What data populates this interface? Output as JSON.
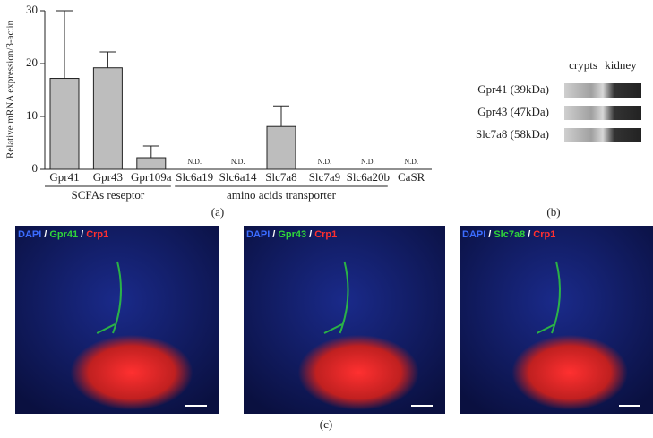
{
  "chart_data": {
    "type": "bar",
    "ylabel": "Relative mRNA expression/β-actin",
    "categories": [
      "Gpr41",
      "Gpr43",
      "Gpr109a",
      "Slc6a19",
      "Slc6a14",
      "Slc7a8",
      "Slc7a9",
      "Slc6a20b",
      "CaSR"
    ],
    "values": [
      17.2,
      19.2,
      2.2,
      null,
      null,
      8.1,
      null,
      null,
      null
    ],
    "value_labels": [
      null,
      null,
      null,
      "N.D.",
      "N.D.",
      null,
      "N.D.",
      "N.D.",
      "N.D."
    ],
    "errors": [
      12.8,
      3.0,
      2.2,
      null,
      null,
      3.9,
      null,
      null,
      null
    ],
    "color": "#bdbdbd",
    "ylim": [
      0,
      30
    ],
    "yticks": [
      0,
      10,
      20,
      30
    ],
    "groups": [
      {
        "label": "SCFAs reseptor",
        "count": 3
      },
      {
        "label": "amino acids transporter",
        "count": 5
      }
    ],
    "panel_label": "(a)"
  },
  "blot": {
    "panel_label": "(b)",
    "columns": [
      "crypts",
      "kidney"
    ],
    "rows": [
      "Gpr41 (39kDa)",
      "Gpr43 (47kDa)",
      "Slc7a8 (58kDa)"
    ]
  },
  "images": {
    "panel_label": "(c)",
    "separator": "/",
    "panels": [
      {
        "stains": [
          "DAPI",
          "Gpr41",
          "Crp1"
        ]
      },
      {
        "stains": [
          "DAPI",
          "Gpr43",
          "Crp1"
        ]
      },
      {
        "stains": [
          "DAPI",
          "Slc7a8",
          "Crp1"
        ]
      }
    ]
  }
}
